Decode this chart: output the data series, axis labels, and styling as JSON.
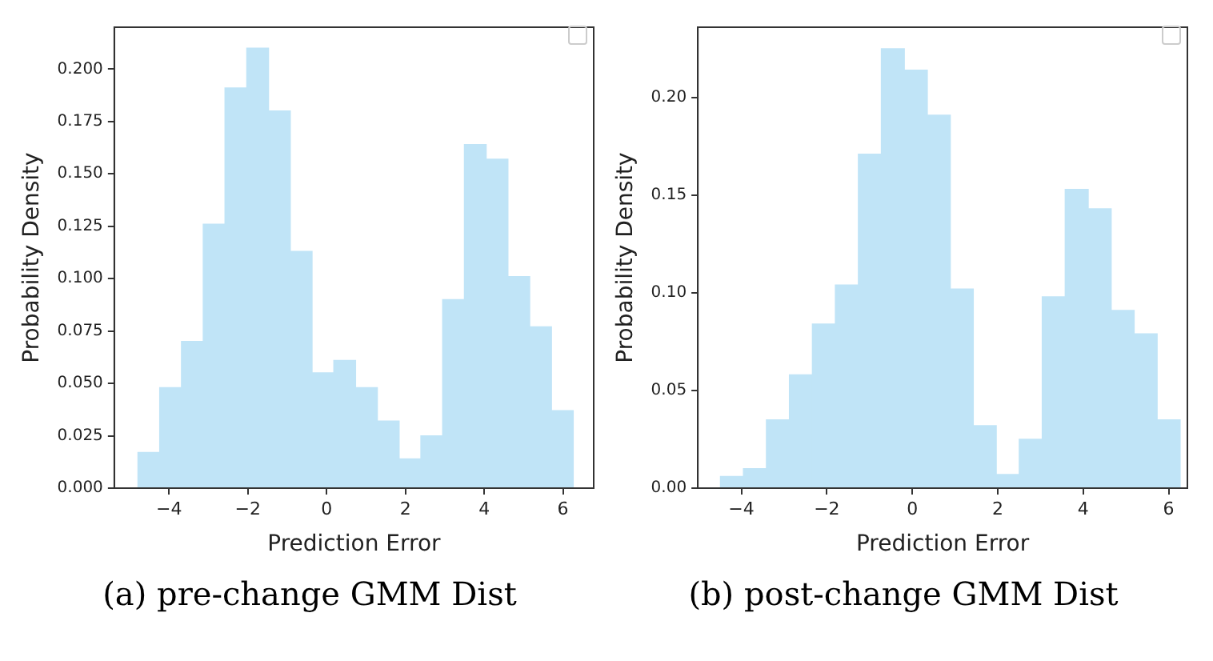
{
  "chart_data": [
    {
      "type": "histogram",
      "title": "(a) pre-change GMM Dist",
      "xlabel": "Prediction Error",
      "ylabel": "Probability Density",
      "color": "#c0e4f7",
      "bins": [
        -4.79,
        -4.237,
        -3.685,
        -3.132,
        -2.58,
        -2.027,
        -1.475,
        -0.922,
        -0.37,
        0.183,
        0.735,
        1.288,
        1.84,
        2.393,
        2.945,
        3.498,
        4.05,
        4.603,
        5.155,
        5.708,
        6.26
      ],
      "values": [
        0.017,
        0.048,
        0.07,
        0.126,
        0.191,
        0.21,
        0.18,
        0.113,
        0.055,
        0.061,
        0.048,
        0.032,
        0.014,
        0.025,
        0.09,
        0.164,
        0.157,
        0.101,
        0.077,
        0.037
      ],
      "xlim": [
        -5.39,
        6.78
      ],
      "ylim": [
        0,
        0.22
      ],
      "xticks": [
        -4,
        -2,
        0,
        2,
        4,
        6
      ],
      "yticks": [
        {
          "value": 0,
          "label": "0.000"
        },
        0.025,
        {
          "value": 0.05,
          "label": "0.050"
        },
        0.075,
        {
          "value": 0.1,
          "label": "0.100"
        },
        0.125,
        {
          "value": 0.15,
          "label": "0.150"
        },
        0.175,
        {
          "value": 0.2,
          "label": "0.200"
        }
      ],
      "grid": false
    },
    {
      "type": "histogram",
      "title": "(b) post-change GMM Dist",
      "xlabel": "Prediction Error",
      "ylabel": "Probability Density",
      "color": "#c0e4f7",
      "bins": [
        -4.49,
        -3.952,
        -3.414,
        -2.876,
        -2.338,
        -1.8,
        -1.262,
        -0.724,
        -0.186,
        0.352,
        0.89,
        1.428,
        1.966,
        2.504,
        3.042,
        3.58,
        4.118,
        4.656,
        5.194,
        5.732,
        6.27
      ],
      "values": [
        0.006,
        0.01,
        0.035,
        0.058,
        0.084,
        0.104,
        0.171,
        0.225,
        0.214,
        0.191,
        0.102,
        0.032,
        0.007,
        0.025,
        0.098,
        0.153,
        0.143,
        0.091,
        0.079,
        0.035
      ],
      "xlim": [
        -5.02,
        6.44
      ],
      "ylim": [
        0,
        0.236
      ],
      "xticks": [
        -4,
        -2,
        0,
        2,
        4,
        6
      ],
      "yticks": [
        {
          "value": 0,
          "label": "0.00"
        },
        0.05,
        {
          "value": 0.1,
          "label": "0.10"
        },
        0.15,
        {
          "value": 0.2,
          "label": "0.20"
        }
      ],
      "grid": false
    }
  ]
}
